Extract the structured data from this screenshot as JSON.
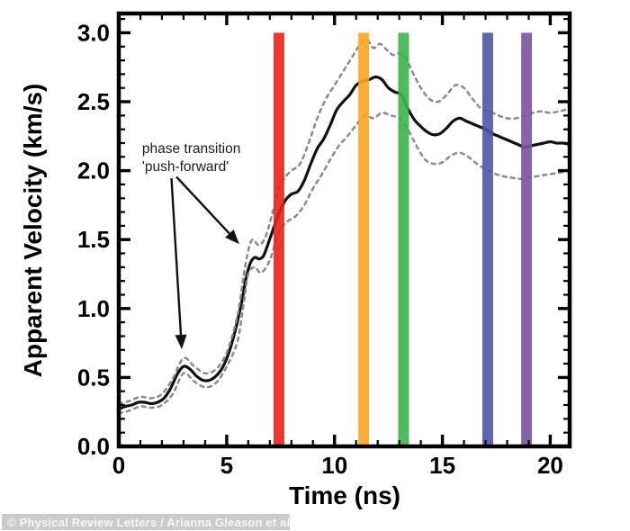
{
  "credit": {
    "text": "© Physical Review Letters / Arianna Gleason et al"
  },
  "chart_data": {
    "type": "line",
    "title": "",
    "xlabel": "Time (ns)",
    "ylabel": "Apparent Velocity (km/s)",
    "xlim": [
      0,
      20.9
    ],
    "ylim": [
      0,
      3.14
    ],
    "grid": false,
    "legend": "none",
    "xticks_major": [
      0,
      5,
      10,
      15,
      20
    ],
    "xtick_labels": [
      "0",
      "5",
      "10",
      "15",
      "20"
    ],
    "xtick_minor_step": 1,
    "yticks_major": [
      0,
      0.5,
      1.0,
      1.5,
      2.0,
      2.5,
      3.0
    ],
    "ytick_labels": [
      "0.0",
      "0.5",
      "1.0",
      "1.5",
      "2.0",
      "2.5",
      "3.0"
    ],
    "ytick_minor_step": 0.1,
    "colors": {
      "curve": "#111111",
      "uncertainty_dashed": "#8a8a8a",
      "frame": "#000000"
    },
    "series": [
      {
        "name": "apparent-velocity",
        "style": "solid",
        "color": "#111111",
        "points": [
          [
            0,
            0.27
          ],
          [
            0.3,
            0.29
          ],
          [
            0.6,
            0.3
          ],
          [
            0.9,
            0.32
          ],
          [
            1.2,
            0.32
          ],
          [
            1.5,
            0.31
          ],
          [
            1.8,
            0.32
          ],
          [
            2.1,
            0.35
          ],
          [
            2.4,
            0.42
          ],
          [
            2.7,
            0.52
          ],
          [
            3.0,
            0.58
          ],
          [
            3.3,
            0.56
          ],
          [
            3.6,
            0.51
          ],
          [
            3.9,
            0.48
          ],
          [
            4.2,
            0.48
          ],
          [
            4.5,
            0.51
          ],
          [
            4.8,
            0.57
          ],
          [
            5.1,
            0.68
          ],
          [
            5.4,
            0.84
          ],
          [
            5.7,
            1.05
          ],
          [
            5.9,
            1.22
          ],
          [
            6.1,
            1.33
          ],
          [
            6.3,
            1.37
          ],
          [
            6.5,
            1.36
          ],
          [
            6.7,
            1.38
          ],
          [
            6.9,
            1.46
          ],
          [
            7.1,
            1.55
          ],
          [
            7.4,
            1.68
          ],
          [
            7.7,
            1.78
          ],
          [
            8.0,
            1.83
          ],
          [
            8.3,
            1.85
          ],
          [
            8.6,
            1.93
          ],
          [
            8.9,
            2.05
          ],
          [
            9.2,
            2.16
          ],
          [
            9.5,
            2.23
          ],
          [
            9.8,
            2.33
          ],
          [
            10.1,
            2.44
          ],
          [
            10.4,
            2.5
          ],
          [
            10.7,
            2.55
          ],
          [
            11.0,
            2.62
          ],
          [
            11.3,
            2.65
          ],
          [
            11.6,
            2.66
          ],
          [
            11.9,
            2.68
          ],
          [
            12.2,
            2.66
          ],
          [
            12.5,
            2.6
          ],
          [
            12.8,
            2.57
          ],
          [
            13.1,
            2.55
          ],
          [
            13.4,
            2.45
          ],
          [
            13.7,
            2.37
          ],
          [
            14.0,
            2.32
          ],
          [
            14.3,
            2.28
          ],
          [
            14.6,
            2.26
          ],
          [
            14.9,
            2.27
          ],
          [
            15.2,
            2.31
          ],
          [
            15.5,
            2.36
          ],
          [
            15.8,
            2.38
          ],
          [
            16.1,
            2.36
          ],
          [
            16.4,
            2.34
          ],
          [
            16.7,
            2.32
          ],
          [
            17.0,
            2.3
          ],
          [
            17.3,
            2.27
          ],
          [
            17.6,
            2.25
          ],
          [
            17.9,
            2.23
          ],
          [
            18.2,
            2.21
          ],
          [
            18.5,
            2.19
          ],
          [
            18.8,
            2.17
          ],
          [
            19.1,
            2.18
          ],
          [
            19.4,
            2.19
          ],
          [
            19.7,
            2.2
          ],
          [
            20.0,
            2.21
          ],
          [
            20.3,
            2.2
          ],
          [
            20.6,
            2.2
          ],
          [
            20.9,
            2.19
          ]
        ]
      },
      {
        "name": "upper-uncertainty",
        "style": "dashed",
        "color": "#8a8a8a",
        "points": [
          [
            0,
            0.31
          ],
          [
            0.5,
            0.33
          ],
          [
            1.0,
            0.36
          ],
          [
            1.5,
            0.35
          ],
          [
            2.0,
            0.38
          ],
          [
            2.5,
            0.49
          ],
          [
            3.0,
            0.64
          ],
          [
            3.5,
            0.58
          ],
          [
            4.0,
            0.53
          ],
          [
            4.5,
            0.56
          ],
          [
            5.0,
            0.68
          ],
          [
            5.5,
            0.95
          ],
          [
            5.8,
            1.25
          ],
          [
            6.0,
            1.42
          ],
          [
            6.2,
            1.5
          ],
          [
            6.5,
            1.46
          ],
          [
            6.8,
            1.52
          ],
          [
            7.1,
            1.68
          ],
          [
            7.4,
            1.86
          ],
          [
            7.7,
            1.95
          ],
          [
            8.0,
            2.0
          ],
          [
            8.4,
            2.05
          ],
          [
            8.8,
            2.2
          ],
          [
            9.2,
            2.38
          ],
          [
            9.6,
            2.52
          ],
          [
            10.0,
            2.62
          ],
          [
            10.4,
            2.72
          ],
          [
            10.8,
            2.82
          ],
          [
            11.2,
            2.92
          ],
          [
            11.5,
            2.95
          ],
          [
            11.8,
            2.89
          ],
          [
            12.1,
            2.92
          ],
          [
            12.4,
            2.88
          ],
          [
            12.7,
            2.84
          ],
          [
            13.0,
            2.85
          ],
          [
            13.3,
            2.82
          ],
          [
            13.6,
            2.72
          ],
          [
            14.0,
            2.6
          ],
          [
            14.4,
            2.52
          ],
          [
            14.8,
            2.5
          ],
          [
            15.2,
            2.55
          ],
          [
            15.6,
            2.62
          ],
          [
            16.0,
            2.6
          ],
          [
            16.4,
            2.52
          ],
          [
            16.8,
            2.45
          ],
          [
            17.2,
            2.43
          ],
          [
            17.6,
            2.4
          ],
          [
            18.0,
            2.38
          ],
          [
            18.4,
            2.38
          ],
          [
            18.8,
            2.4
          ],
          [
            19.2,
            2.42
          ],
          [
            19.6,
            2.43
          ],
          [
            20.0,
            2.42
          ],
          [
            20.4,
            2.43
          ],
          [
            20.9,
            2.45
          ]
        ]
      },
      {
        "name": "lower-uncertainty",
        "style": "dashed",
        "color": "#8a8a8a",
        "points": [
          [
            0,
            0.24
          ],
          [
            0.5,
            0.26
          ],
          [
            1.0,
            0.29
          ],
          [
            1.5,
            0.28
          ],
          [
            2.0,
            0.3
          ],
          [
            2.5,
            0.38
          ],
          [
            3.0,
            0.53
          ],
          [
            3.5,
            0.47
          ],
          [
            4.0,
            0.43
          ],
          [
            4.5,
            0.46
          ],
          [
            5.0,
            0.58
          ],
          [
            5.5,
            0.76
          ],
          [
            5.8,
            1.05
          ],
          [
            6.0,
            1.25
          ],
          [
            6.3,
            1.3
          ],
          [
            6.6,
            1.26
          ],
          [
            7.0,
            1.35
          ],
          [
            7.4,
            1.55
          ],
          [
            7.8,
            1.63
          ],
          [
            8.2,
            1.67
          ],
          [
            8.6,
            1.75
          ],
          [
            9.0,
            1.87
          ],
          [
            9.4,
            1.97
          ],
          [
            9.8,
            2.08
          ],
          [
            10.2,
            2.18
          ],
          [
            10.6,
            2.25
          ],
          [
            11.0,
            2.33
          ],
          [
            11.4,
            2.4
          ],
          [
            11.8,
            2.38
          ],
          [
            12.2,
            2.42
          ],
          [
            12.6,
            2.4
          ],
          [
            13.0,
            2.38
          ],
          [
            13.4,
            2.3
          ],
          [
            13.8,
            2.18
          ],
          [
            14.2,
            2.08
          ],
          [
            14.6,
            2.05
          ],
          [
            15.0,
            2.06
          ],
          [
            15.4,
            2.11
          ],
          [
            15.8,
            2.13
          ],
          [
            16.2,
            2.1
          ],
          [
            16.6,
            2.05
          ],
          [
            17.0,
            2.01
          ],
          [
            17.4,
            1.98
          ],
          [
            17.8,
            1.96
          ],
          [
            18.2,
            1.95
          ],
          [
            18.6,
            1.94
          ],
          [
            19.0,
            1.95
          ],
          [
            19.4,
            1.96
          ],
          [
            19.8,
            1.97
          ],
          [
            20.2,
            1.98
          ],
          [
            20.6,
            1.99
          ],
          [
            20.9,
            2.0
          ]
        ]
      }
    ],
    "event_bars": [
      {
        "name": "red-event-bar",
        "t": 7.42,
        "width_ns": 0.5,
        "v_bottom": 0,
        "v_top": 3.0,
        "color": "#e2231b"
      },
      {
        "name": "orange-event-bar",
        "t": 11.35,
        "width_ns": 0.5,
        "v_bottom": 0,
        "v_top": 3.0,
        "color": "#f7a521"
      },
      {
        "name": "green-event-bar",
        "t": 13.2,
        "width_ns": 0.5,
        "v_bottom": 0,
        "v_top": 3.0,
        "color": "#3eb34a"
      },
      {
        "name": "blue-event-bar",
        "t": 17.1,
        "width_ns": 0.5,
        "v_bottom": 0,
        "v_top": 3.0,
        "color": "#4d57a5"
      },
      {
        "name": "purple-event-bar",
        "t": 18.9,
        "width_ns": 0.5,
        "v_bottom": 0,
        "v_top": 3.0,
        "color": "#7a52a2"
      }
    ],
    "annotation": {
      "line1": "phase transition",
      "line2": "'push-forward'",
      "anchor": {
        "t": 1.08,
        "v_line1": 2.128,
        "v_line2": 1.997
      },
      "arrows": [
        {
          "from": [
            2.44,
            1.945
          ],
          "to": [
            2.92,
            0.705
          ]
        },
        {
          "from": [
            2.67,
            1.955
          ],
          "to": [
            5.58,
            1.468
          ]
        }
      ]
    }
  }
}
